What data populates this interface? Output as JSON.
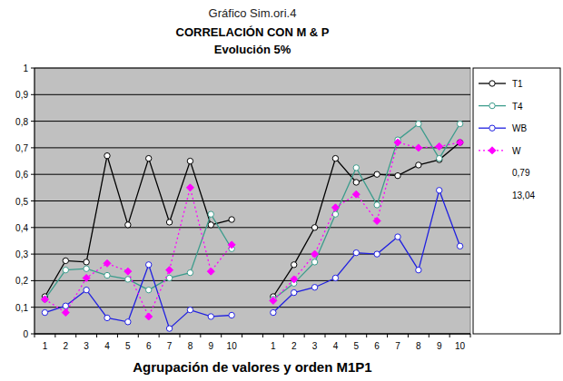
{
  "chart_data": {
    "type": "line",
    "title": "Gráfico Sim.ori.4",
    "subtitle": [
      "CORRELACIÓN CON M & P",
      "Evolución 5%"
    ],
    "x_label": "Agrupación de valores y orden M1P1",
    "categories": [
      "1",
      "2",
      "3",
      "4",
      "5",
      "6",
      "7",
      "8",
      "9",
      "10",
      null,
      "1",
      "2",
      "3",
      "4",
      "5",
      "6",
      "7",
      "8",
      "9",
      "10"
    ],
    "ylim": [
      0,
      1
    ],
    "yticks": [
      0,
      {
        "value": 0.1,
        "label": "0,1"
      },
      {
        "value": 0.2,
        "label": "0,2"
      },
      {
        "value": 0.3,
        "label": "0,3"
      },
      {
        "value": 0.4,
        "label": "0,4"
      },
      {
        "value": 0.5,
        "label": "0,5"
      },
      {
        "value": 0.6,
        "label": "0,6"
      },
      {
        "value": 0.7,
        "label": "0,7"
      },
      {
        "value": 0.8,
        "label": "0,8"
      },
      {
        "value": 0.9,
        "label": "0,9"
      },
      1
    ],
    "grid": true,
    "legend": "right",
    "series": [
      {
        "name": "T1",
        "color": "#000000",
        "marker": "circle",
        "line_style": "solid",
        "values": [
          0.14,
          0.275,
          0.27,
          0.67,
          0.41,
          0.66,
          0.42,
          0.65,
          0.41,
          0.43,
          null,
          0.14,
          0.26,
          0.4,
          0.66,
          0.57,
          0.6,
          0.595,
          0.635,
          0.655,
          0.72
        ]
      },
      {
        "name": "T4",
        "color": "#3c9c8c",
        "marker": "circle",
        "line_style": "solid",
        "values": [
          0.13,
          0.24,
          0.245,
          0.22,
          0.205,
          0.165,
          0.21,
          0.23,
          0.45,
          0.32,
          null,
          0.13,
          0.19,
          0.27,
          0.45,
          0.625,
          0.485,
          0.73,
          0.79,
          0.66,
          0.79
        ]
      },
      {
        "name": "WB",
        "color": "#2020e0",
        "marker": "circle",
        "line_style": "solid",
        "values": [
          0.08,
          0.105,
          0.165,
          0.06,
          0.045,
          0.26,
          0.02,
          0.09,
          0.065,
          0.07,
          null,
          0.08,
          0.155,
          0.175,
          0.21,
          0.305,
          0.3,
          0.365,
          0.24,
          0.54,
          0.33
        ]
      },
      {
        "name": "W",
        "color": "#ff00ff",
        "marker": "diamond",
        "line_style": "dotted",
        "values": [
          0.13,
          0.08,
          0.21,
          0.265,
          0.235,
          0.065,
          0.24,
          0.55,
          0.235,
          0.335,
          null,
          0.125,
          0.205,
          0.3,
          0.475,
          0.525,
          0.425,
          0.72,
          0.7,
          0.705,
          0.72
        ]
      },
      {
        "name": "0,79",
        "color": "#000000",
        "marker": "none",
        "line_style": "none",
        "values": [
          null,
          null,
          null,
          null,
          null,
          null,
          null,
          null,
          null,
          null,
          null,
          null,
          null,
          null,
          null,
          null,
          null,
          null,
          null,
          null,
          null
        ]
      },
      {
        "name": "13,04",
        "color": "#000000",
        "marker": "none",
        "line_style": "none",
        "values": [
          null,
          null,
          null,
          null,
          null,
          null,
          null,
          null,
          null,
          null,
          null,
          null,
          null,
          null,
          null,
          null,
          null,
          null,
          null,
          null,
          null
        ]
      }
    ]
  }
}
